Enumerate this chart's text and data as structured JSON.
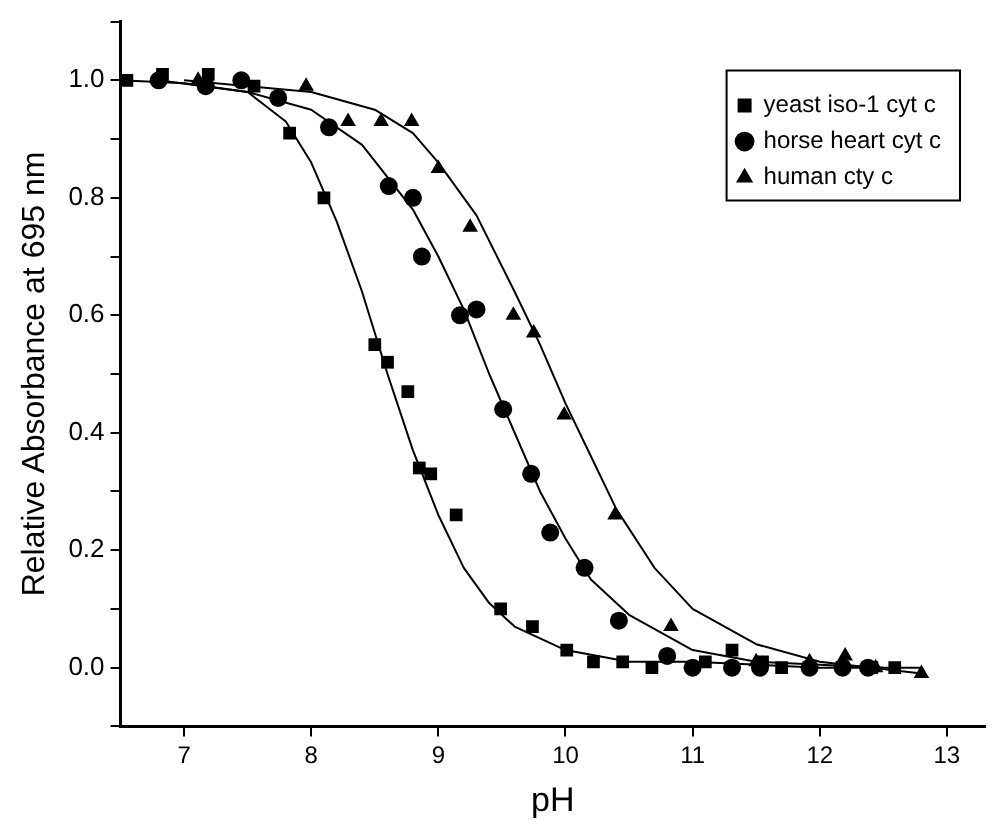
{
  "chart_data": {
    "type": "scatter",
    "xlabel": "pH",
    "ylabel": "Relative Absorbance at 695 nm",
    "xlim": [
      6.5,
      13.3
    ],
    "ylim": [
      -0.1,
      1.1
    ],
    "xticks": [
      7,
      8,
      9,
      10,
      11,
      12,
      13
    ],
    "yticks": [
      {
        "value": -0.1,
        "label": null
      },
      {
        "value": 0,
        "label": "0.0"
      },
      {
        "value": 0.1,
        "label": null
      },
      {
        "value": 0.2,
        "label": "0.2"
      },
      {
        "value": 0.3,
        "label": null
      },
      {
        "value": 0.4,
        "label": "0.4"
      },
      {
        "value": 0.5,
        "label": null
      },
      {
        "value": 0.6,
        "label": "0.6"
      },
      {
        "value": 0.7,
        "label": null
      },
      {
        "value": 0.8,
        "label": "0.8"
      },
      {
        "value": 0.9,
        "label": null
      },
      {
        "value": 1,
        "label": "1.0"
      },
      {
        "value": 1.1,
        "label": null
      }
    ],
    "grid": false,
    "legend": "top right",
    "series": [
      {
        "name": "yeast iso-1 cyt c",
        "type": "scatter",
        "marker": "square",
        "color": "#000000",
        "x": [
          6.55,
          6.83,
          7.19,
          7.55,
          7.83,
          8.1,
          8.5,
          8.6,
          8.76,
          8.85,
          8.94,
          9.14,
          9.49,
          9.74,
          10.01,
          10.22,
          10.45,
          10.68,
          11.1,
          11.31,
          11.55,
          11.7,
          12.41,
          12.59
        ],
        "values": [
          1.0,
          1.01,
          1.01,
          0.99,
          0.91,
          0.8,
          0.55,
          0.52,
          0.47,
          0.34,
          0.33,
          0.26,
          0.1,
          0.07,
          0.03,
          0.01,
          0.01,
          0.0,
          0.01,
          0.03,
          0.01,
          0.0,
          0.0,
          0.0
        ]
      },
      {
        "name": "horse heart cyt c",
        "type": "scatter",
        "marker": "circle",
        "color": "#000000",
        "x": [
          6.8,
          7.17,
          7.45,
          7.74,
          8.14,
          8.61,
          8.8,
          8.87,
          9.17,
          9.3,
          9.51,
          9.73,
          9.88,
          10.15,
          10.42,
          10.8,
          11.0,
          11.31,
          11.53,
          11.92,
          12.18,
          12.38
        ],
        "values": [
          1.0,
          0.99,
          1.0,
          0.97,
          0.92,
          0.82,
          0.8,
          0.7,
          0.6,
          0.61,
          0.44,
          0.33,
          0.23,
          0.17,
          0.08,
          0.02,
          0.0,
          0.0,
          0.0,
          0.0,
          0.0,
          0.0
        ]
      },
      {
        "name": "human cty c",
        "type": "scatter",
        "marker": "triangle",
        "color": "#000000",
        "x": [
          7.11,
          7.96,
          8.29,
          8.55,
          8.79,
          9.0,
          9.25,
          9.59,
          9.75,
          9.99,
          10.39,
          10.83,
          11.5,
          11.92,
          12.2,
          12.44,
          12.8
        ],
        "values": [
          1.0,
          0.99,
          0.93,
          0.93,
          0.93,
          0.85,
          0.75,
          0.6,
          0.57,
          0.43,
          0.26,
          0.07,
          0.01,
          0.01,
          0.02,
          0.0,
          -0.01
        ]
      },
      {
        "type": "line",
        "marker": "none",
        "color": "#000000",
        "x": [
          6.5,
          7.0,
          7.5,
          7.8,
          8.0,
          8.2,
          8.4,
          8.6,
          8.8,
          9.0,
          9.2,
          9.4,
          9.6,
          10.0,
          10.5,
          11.0,
          12.0,
          12.8
        ],
        "values": [
          1.0,
          0.995,
          0.98,
          0.93,
          0.86,
          0.76,
          0.64,
          0.5,
          0.37,
          0.26,
          0.17,
          0.11,
          0.07,
          0.03,
          0.01,
          0.01,
          0.0,
          0.0
        ]
      },
      {
        "type": "line",
        "marker": "none",
        "color": "#000000",
        "x": [
          6.8,
          7.5,
          8.0,
          8.4,
          8.8,
          9.0,
          9.2,
          9.4,
          9.6,
          9.8,
          10.0,
          10.2,
          10.5,
          11.0,
          11.5,
          12.5
        ],
        "values": [
          1.0,
          0.98,
          0.95,
          0.89,
          0.78,
          0.7,
          0.61,
          0.5,
          0.4,
          0.3,
          0.22,
          0.15,
          0.09,
          0.03,
          0.01,
          0.0
        ]
      },
      {
        "type": "line",
        "marker": "none",
        "color": "#000000",
        "x": [
          7.0,
          8.0,
          8.5,
          8.8,
          9.0,
          9.3,
          9.6,
          9.8,
          10.0,
          10.2,
          10.4,
          10.7,
          11.0,
          11.5,
          12.0,
          12.8
        ],
        "values": [
          1.0,
          0.98,
          0.95,
          0.91,
          0.86,
          0.77,
          0.64,
          0.55,
          0.45,
          0.36,
          0.27,
          0.17,
          0.1,
          0.04,
          0.01,
          -0.01
        ]
      }
    ]
  }
}
